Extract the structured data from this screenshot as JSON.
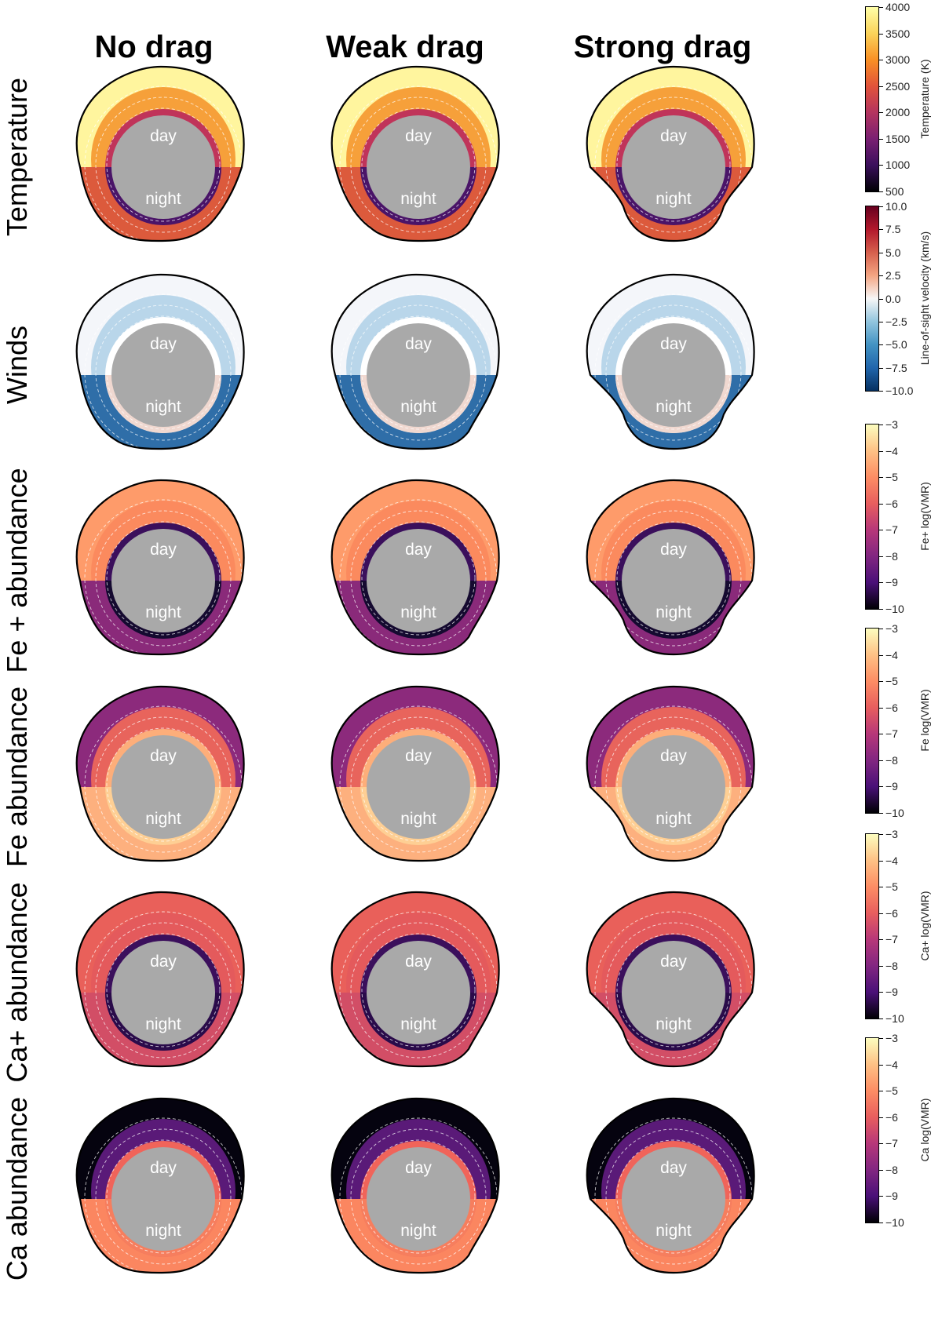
{
  "figure": {
    "columns": [
      "No drag",
      "Weak drag",
      "Strong drag"
    ],
    "labels": {
      "day": "day",
      "night": "night"
    },
    "rows": [
      {
        "label": "Temperature",
        "colorbar": {
          "title": "Temperature (K)",
          "ticks": [
            "4000",
            "3500",
            "3000",
            "2500",
            "2000",
            "1500",
            "1000",
            "500"
          ],
          "colors": [
            "#ffffa8",
            "#fbd35a",
            "#f99025",
            "#e2533a",
            "#b4345f",
            "#7a1f72",
            "#3b0f5c",
            "#000004"
          ]
        },
        "fills": {
          "outer_top": "#fff59e",
          "mid_top": "#f6a03a",
          "inner_top": "#c0345a",
          "bottom_outer": "#dc5a3c",
          "bottom_inner": "#4a1468"
        }
      },
      {
        "label": "Winds",
        "colorbar": {
          "title": "Line-of-sight velocity (km/s)",
          "ticks": [
            "10.0",
            "7.5",
            "5.0",
            "2.5",
            "0.0",
            "−2.5",
            "−5.0",
            "−7.5",
            "−10.0"
          ],
          "colors": [
            "#67001f",
            "#b2182b",
            "#d6604d",
            "#f4a582",
            "#f7f7f7",
            "#92c5de",
            "#4393c3",
            "#2166ac",
            "#053061"
          ]
        },
        "fills": {
          "outer_top": "#f4f6fa",
          "mid_top": "#b9d6ea",
          "inner_top": "#ffffff",
          "bottom_outer": "#2f6ea8",
          "bottom_inner": "#f0d8d0"
        }
      },
      {
        "label": "Fe + abundance",
        "colorbar": {
          "title": "Fe+ log(VMR)",
          "ticks": [
            "−3",
            "−4",
            "−5",
            "−6",
            "−7",
            "−8",
            "−9",
            "−10"
          ],
          "colors": [
            "#fcfdbf",
            "#fec185",
            "#fd8d64",
            "#e85e5e",
            "#b73779",
            "#822681",
            "#4a1078",
            "#000004"
          ]
        },
        "fills": {
          "outer_top": "#fe9b6a",
          "mid_top": "#fb8a5e",
          "inner_top": "#3b0f5c",
          "bottom_outer": "#8a2a7a",
          "bottom_inner": "#150a30"
        }
      },
      {
        "label": "Fe abundance",
        "colorbar": {
          "title": "Fe log(VMR)",
          "ticks": [
            "−3",
            "−4",
            "−5",
            "−6",
            "−7",
            "−8",
            "−9",
            "−10"
          ],
          "colors": [
            "#fcfdbf",
            "#fec185",
            "#fd8d64",
            "#e85e5e",
            "#b73779",
            "#822681",
            "#4a1078",
            "#000004"
          ]
        },
        "fills": {
          "outer_top": "#8c2a7c",
          "mid_top": "#e8645c",
          "inner_top": "#fdae7a",
          "bottom_outer": "#fdb07e",
          "bottom_inner": "#fecf94"
        }
      },
      {
        "label": "Ca+ abundance",
        "colorbar": {
          "title": "Ca+ log(VMR)",
          "ticks": [
            "−3",
            "−4",
            "−5",
            "−6",
            "−7",
            "−8",
            "−9",
            "−10"
          ],
          "colors": [
            "#fcfdbf",
            "#fec185",
            "#fd8d64",
            "#e85e5e",
            "#b73779",
            "#822681",
            "#4a1078",
            "#000004"
          ]
        },
        "fills": {
          "outer_top": "#e9605a",
          "mid_top": "#e45a5c",
          "inner_top": "#3b0f5c",
          "bottom_outer": "#d24e66",
          "bottom_inner": "#2a0b4a"
        }
      },
      {
        "label": "Ca abundance",
        "colorbar": {
          "title": "Ca log(VMR)",
          "ticks": [
            "−3",
            "−4",
            "−5",
            "−6",
            "−7",
            "−8",
            "−9",
            "−10"
          ],
          "colors": [
            "#fcfdbf",
            "#fec185",
            "#fd8d64",
            "#e85e5e",
            "#b73779",
            "#822681",
            "#4a1078",
            "#000004"
          ]
        },
        "fills": {
          "outer_top": "#05030f",
          "mid_top": "#5a1a78",
          "inner_top": "#f0645a",
          "bottom_outer": "#fb8660",
          "bottom_inner": "#f67e5e"
        }
      }
    ]
  }
}
